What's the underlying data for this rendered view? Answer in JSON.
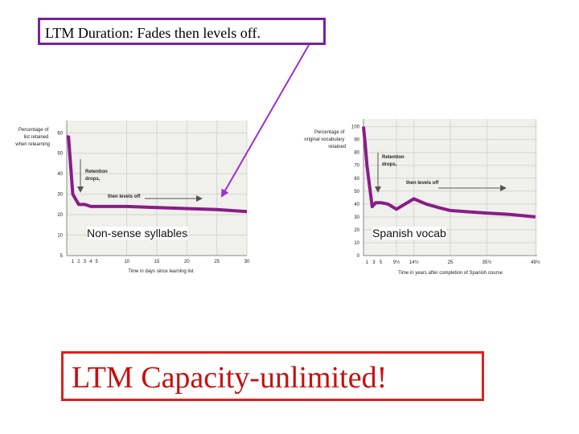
{
  "title": "LTM Duration:  Fades then levels off.",
  "capacity": "LTM Capacity-unlimited!",
  "colors": {
    "curve": "#8a1c86",
    "arrow_line": "#9b30d0",
    "title_border": "#7a1fa2",
    "capacity_border": "#e0201c",
    "capacity_text": "#c80f0f",
    "plot_bg": "#f0f0ec"
  },
  "chart_data": [
    {
      "type": "line",
      "caption": "Non-sense syllables",
      "ylabel": "Percentage of list retained when relearning",
      "xlabel": "Time in days since learning list",
      "ytick_labels": [
        "5",
        "10",
        "20",
        "30",
        "40",
        "50",
        "60"
      ],
      "xtick_labels": [
        "1",
        "2",
        "3",
        "4",
        "5",
        "10",
        "15",
        "20",
        "25",
        "30"
      ],
      "annotations": [
        "Retention drops,",
        "then levels off"
      ],
      "series": [
        {
          "x": [
            0,
            0.3,
            1,
            2,
            3,
            4,
            5,
            10,
            15,
            20,
            25,
            30
          ],
          "y": [
            58,
            58,
            30,
            25,
            25,
            24,
            24,
            24,
            23.5,
            23,
            22.5,
            21.5
          ]
        }
      ]
    },
    {
      "type": "line",
      "caption": "Spanish vocab",
      "ylabel": "Percentage of original vocabulary retained",
      "xlabel": "Time in years after completion of Spanish course",
      "ytick_labels": [
        "0",
        "10",
        "20",
        "30",
        "40",
        "50",
        "60",
        "70",
        "80",
        "90",
        "100"
      ],
      "xtick_labels": [
        "1",
        "3",
        "5",
        "9½",
        "14½",
        "25",
        "35½",
        "49½"
      ],
      "annotations": [
        "Retention drops,",
        "then levels off"
      ],
      "series": [
        {
          "x": [
            0,
            0.5,
            1,
            2.5,
            3.5,
            5,
            7,
            9.5,
            12,
            14.5,
            18,
            22,
            25,
            30,
            35.5,
            42,
            49.5
          ],
          "y": [
            100,
            86,
            70,
            38,
            41,
            41,
            40,
            36,
            40,
            44,
            40,
            37,
            35,
            34,
            33,
            32,
            30
          ]
        }
      ]
    }
  ]
}
